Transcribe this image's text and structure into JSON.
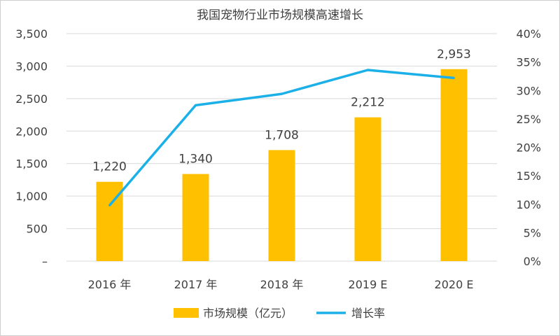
{
  "chart_data": {
    "type": "bar+line",
    "title": "我国宠物行业市场规模高速增长",
    "categories": [
      "2016 年",
      "2017 年",
      "2018 年",
      "2019 E",
      "2020 E"
    ],
    "series": [
      {
        "name": "市场规模（亿元）",
        "type": "bar",
        "axis": "left",
        "values": [
          1220,
          1340,
          1708,
          2212,
          2953
        ],
        "value_labels": [
          "1,220",
          "1,340",
          "1,708",
          "2,212",
          "2,953"
        ],
        "color": "#FFC000"
      },
      {
        "name": "增长率",
        "type": "line",
        "axis": "right",
        "values": [
          9.8,
          27.4,
          29.4,
          33.6,
          32.2
        ],
        "color": "#1CB0E8"
      }
    ],
    "y_left": {
      "ylim": [
        0,
        3500
      ],
      "ticks": [
        0,
        500,
        1000,
        1500,
        2000,
        2500,
        3000,
        3500
      ],
      "tick_labels": [
        "–",
        "500",
        "1,000",
        "1,500",
        "2,000",
        "2,500",
        "3,000",
        "3,500"
      ]
    },
    "y_right": {
      "ylim": [
        0,
        40
      ],
      "ticks": [
        0,
        5,
        10,
        15,
        20,
        25,
        30,
        35,
        40
      ],
      "tick_labels": [
        "0%",
        "5%",
        "10%",
        "15%",
        "20%",
        "25%",
        "30%",
        "35%",
        "40%"
      ]
    },
    "grid": true,
    "gridline_color": "#d9d9d9",
    "legend_position": "bottom"
  }
}
